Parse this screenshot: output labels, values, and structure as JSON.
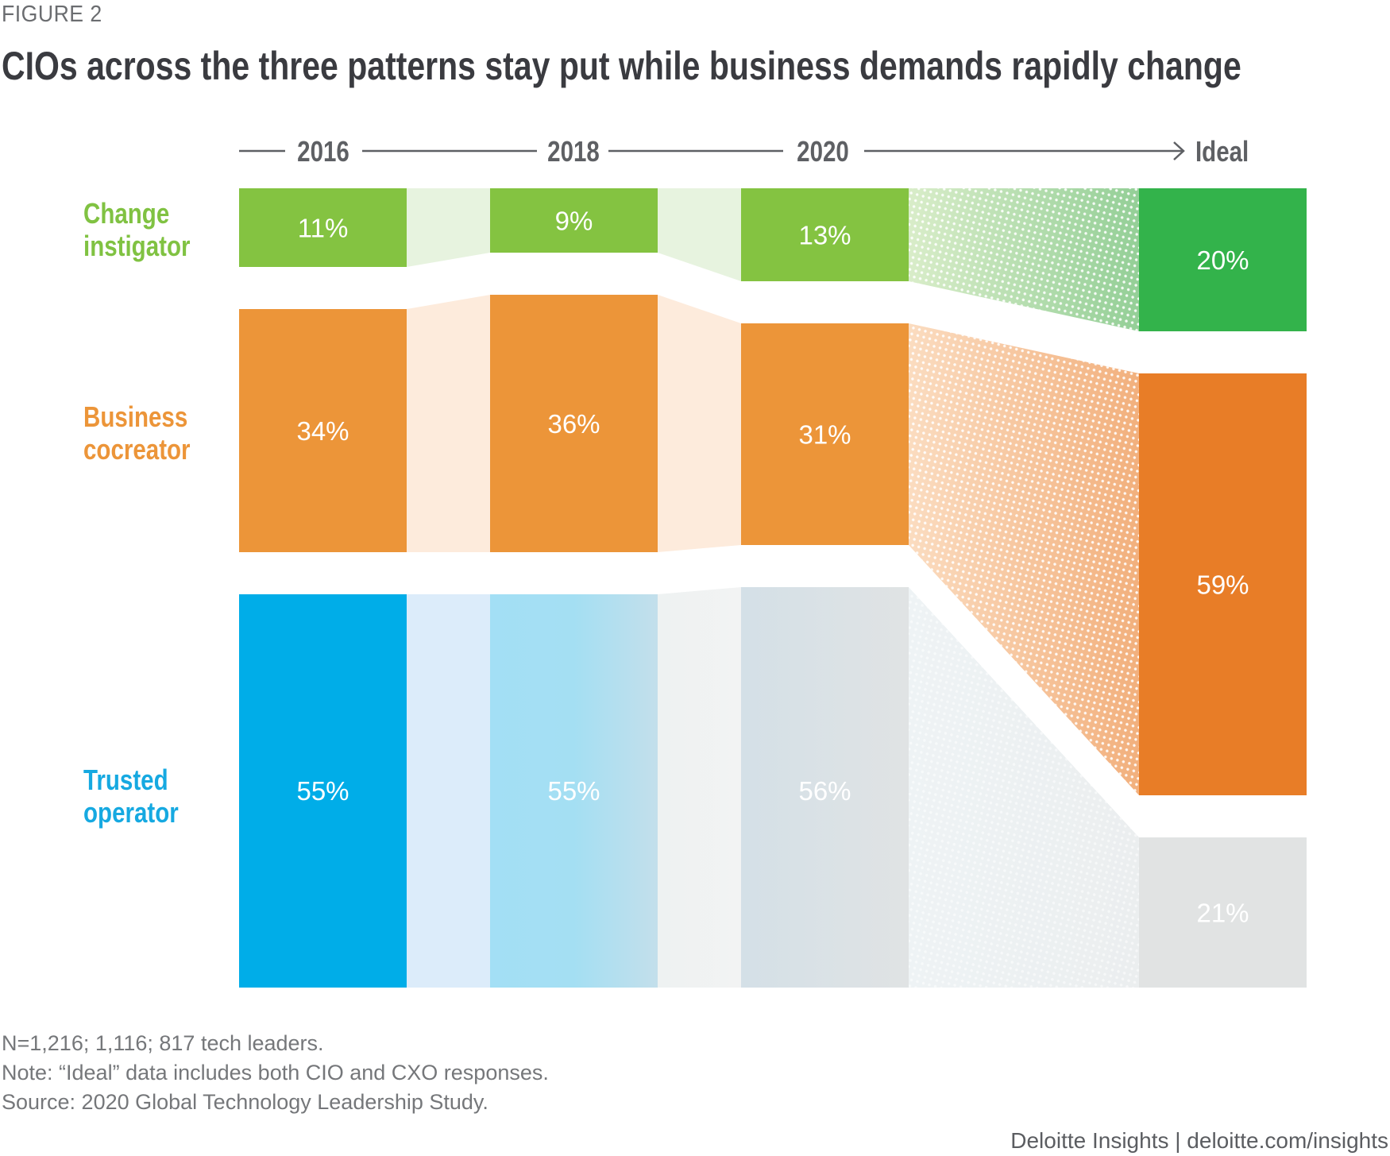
{
  "figure_label": "FIGURE 2",
  "title": "CIOs across the three patterns stay put while business demands rapidly change",
  "notes": [
    "N=1,216; 1,116; 817 tech leaders.",
    "Note: “Ideal” data includes both CIO and CXO responses.",
    "Source: 2020 Global Technology Leadership Study."
  ],
  "credit": "Deloitte Insights | deloitte.com/insights",
  "chart_data": {
    "type": "bar",
    "subtype": "stacked-100-percent-with-flows",
    "title": "CIOs across the three patterns stay put while business demands rapidly change",
    "categories": [
      "2016",
      "2018",
      "2020",
      "Ideal"
    ],
    "axis_arrow": "timeline from 2016 to Ideal",
    "unit": "%",
    "series": [
      {
        "name": "Change instigator",
        "line1": "Change",
        "line2": "instigator",
        "values": [
          11,
          9,
          13,
          20
        ],
        "labels": [
          "11%",
          "9%",
          "13%",
          "20%"
        ],
        "color": "#84c341",
        "ideal_color": "#33b34b",
        "flow_color": "#e7f3df",
        "label_color": "#80c242"
      },
      {
        "name": "Business cocreator",
        "line1": "Business",
        "line2": "cocreator",
        "values": [
          34,
          36,
          31,
          59
        ],
        "labels": [
          "34%",
          "36%",
          "31%",
          "59%"
        ],
        "color": "#ec9539",
        "ideal_color": "#e87d27",
        "flow_color": "#fdebdc",
        "label_color": "#ec9539"
      },
      {
        "name": "Trusted operator",
        "line1": "Trusted",
        "line2": "operator",
        "values": [
          55,
          55,
          56,
          21
        ],
        "labels": [
          "55%",
          "55%",
          "56%",
          "21%"
        ],
        "colors": [
          "#00ade8",
          "#9fdef5",
          "#d8e0e6",
          "#e1e3e3"
        ],
        "flow_color": "#dcecfa",
        "label_color": "#16a9e1"
      }
    ],
    "legend": "left",
    "grid": false
  }
}
